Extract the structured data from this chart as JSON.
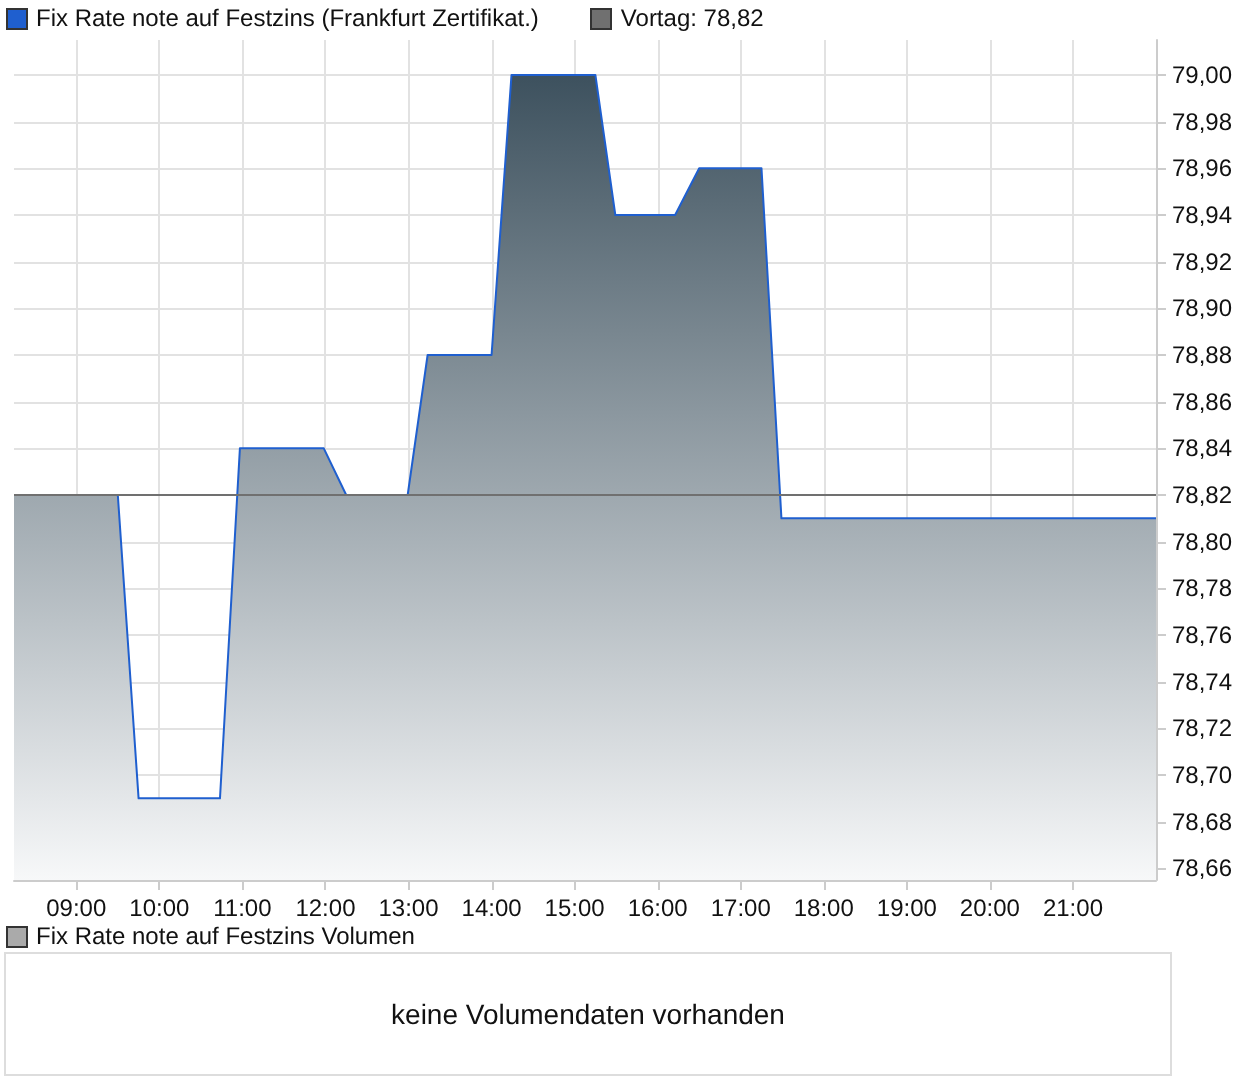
{
  "chart_data": [
    {
      "type": "area",
      "x": [
        8.25,
        9.5,
        9.75,
        10.73,
        10.97,
        11.98,
        12.25,
        12.99,
        13.23,
        14.0,
        14.24,
        15.25,
        15.49,
        16.21,
        16.5,
        17.25,
        17.49,
        22.0
      ],
      "series": [
        {
          "name": "Fix Rate note auf Festzins (Frankfurt Zertifikat.)",
          "color": "#1f5fcf",
          "values": [
            78.82,
            78.82,
            78.69,
            78.69,
            78.84,
            78.84,
            78.82,
            78.82,
            78.88,
            78.88,
            79.0,
            79.0,
            78.94,
            78.94,
            78.96,
            78.96,
            78.81,
            78.81
          ]
        }
      ],
      "xlim": [
        8.25,
        22.0
      ],
      "xticks": [
        {
          "value": 9,
          "label": "09:00"
        },
        {
          "value": 10,
          "label": "10:00"
        },
        {
          "value": 11,
          "label": "11:00"
        },
        {
          "value": 12,
          "label": "12:00"
        },
        {
          "value": 13,
          "label": "13:00"
        },
        {
          "value": 14,
          "label": "14:00"
        },
        {
          "value": 15,
          "label": "15:00"
        },
        {
          "value": 16,
          "label": "16:00"
        },
        {
          "value": 17,
          "label": "17:00"
        },
        {
          "value": 18,
          "label": "18:00"
        },
        {
          "value": 19,
          "label": "19:00"
        },
        {
          "value": 20,
          "label": "20:00"
        },
        {
          "value": 21,
          "label": "21:00"
        }
      ],
      "ylim": [
        78.655,
        79.015
      ],
      "yticks": [
        {
          "value": 78.66,
          "label": "78,66"
        },
        {
          "value": 78.68,
          "label": "78,68"
        },
        {
          "value": 78.7,
          "label": "78,70"
        },
        {
          "value": 78.72,
          "label": "78,72"
        },
        {
          "value": 78.74,
          "label": "78,74"
        },
        {
          "value": 78.76,
          "label": "78,76"
        },
        {
          "value": 78.78,
          "label": "78,78"
        },
        {
          "value": 78.8,
          "label": "78,80"
        },
        {
          "value": 78.82,
          "label": "78,82"
        },
        {
          "value": 78.84,
          "label": "78,84"
        },
        {
          "value": 78.86,
          "label": "78,86"
        },
        {
          "value": 78.88,
          "label": "78,88"
        },
        {
          "value": 78.9,
          "label": "78,90"
        },
        {
          "value": 78.92,
          "label": "78,92"
        },
        {
          "value": 78.94,
          "label": "78,94"
        },
        {
          "value": 78.96,
          "label": "78,96"
        },
        {
          "value": 78.98,
          "label": "78,98"
        },
        {
          "value": 79.0,
          "label": "79,00"
        }
      ],
      "ref_lines": [
        {
          "axis": "y",
          "value": 78.82,
          "label": "Vortag: 78,82",
          "color": "#707070"
        }
      ],
      "grid": true,
      "legend": "top left",
      "marker": "none"
    },
    {
      "type": "other",
      "title": "Fix Rate note auf Festzins Volumen",
      "annotations": [
        "keine Volumendaten vorhanden"
      ]
    }
  ]
}
